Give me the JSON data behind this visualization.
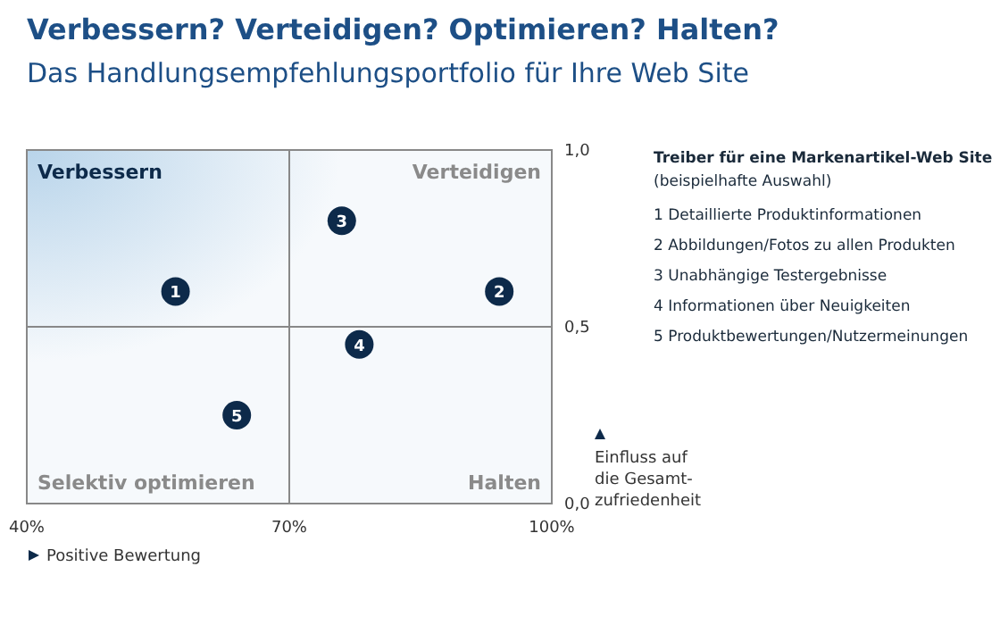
{
  "chart_data": {
    "type": "scatter",
    "title": "Verbessern? Verteidigen? Optimieren? Halten?",
    "subtitle": "Das Handlungsempfehlungsportfolio für Ihre Web Site",
    "xlabel": "Positive Bewertung",
    "ylabel": "Einfluss auf\ndie Gesamt-\nzufriedenheit",
    "legend_title": "Treiber für eine Markenartikel-Web Site\n(beispielhafte Auswahl)",
    "x": [
      57,
      94,
      76,
      78,
      64
    ],
    "values": [
      0.6,
      0.6,
      0.8,
      0.45,
      0.25
    ],
    "color": "#0d2a4a",
    "xlim": [
      40,
      100
    ],
    "xticks": [
      {
        "value": 40,
        "label": "40%"
      },
      {
        "value": 70,
        "label": "70%"
      },
      {
        "value": 100,
        "label": "100%"
      }
    ],
    "ylim": [
      0,
      1
    ],
    "yticks": [
      {
        "value": 0,
        "label": "0,0"
      },
      {
        "value": 0.5,
        "label": "0,5"
      },
      {
        "value": 1,
        "label": "1,0"
      }
    ],
    "grid": true,
    "marker": "circle",
    "annotations": [
      "Verbessern",
      "Verteidigen",
      "Selektiv optimieren",
      "Halten",
      "1 Detaillierte Produktinformationen",
      "2 Abbildungen/Fotos zu allen Produkten",
      "3 Unabhängige Testergebnisse",
      "4 Informationen über Neuigkeiten",
      "5 Produktbewertungen/Nutzermeinungen",
      {
        "text": "1",
        "x": 57,
        "y": 0.6
      },
      {
        "text": "2",
        "x": 94,
        "y": 0.6
      },
      {
        "text": "3",
        "x": 76,
        "y": 0.8
      },
      {
        "text": "4",
        "x": 78,
        "y": 0.45
      },
      {
        "text": "5",
        "x": 64,
        "y": 0.25
      }
    ]
  }
}
